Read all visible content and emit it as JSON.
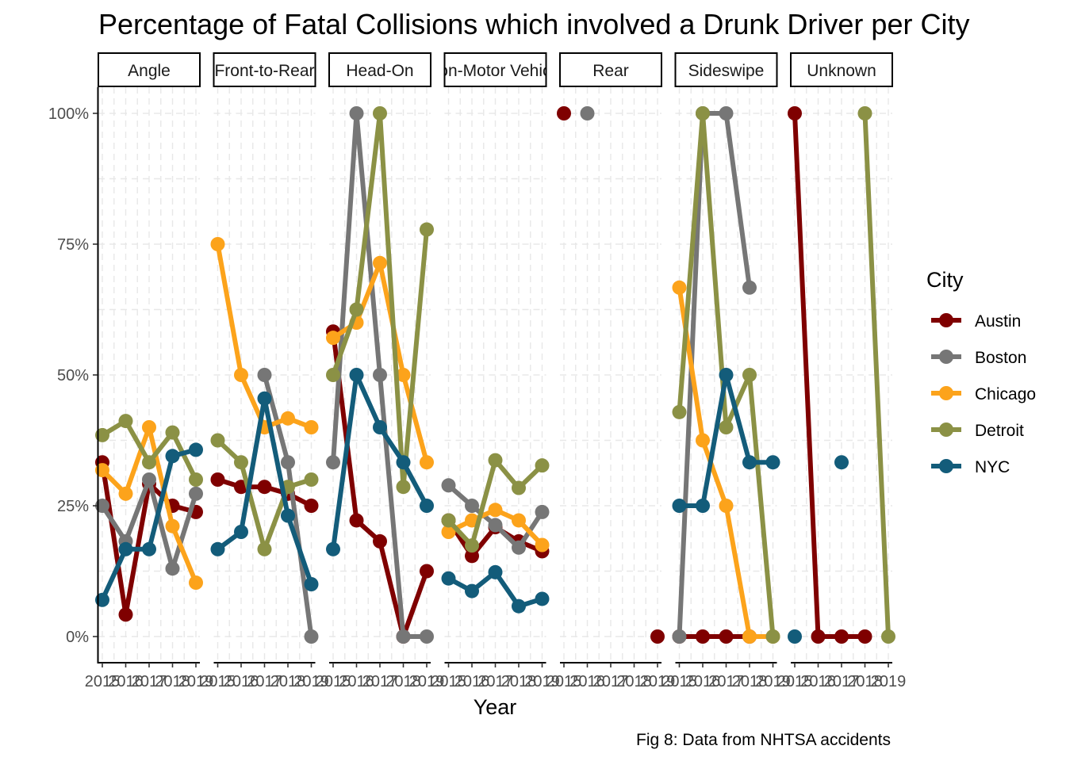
{
  "chart_data": {
    "type": "line",
    "title": "Percentage of Fatal Collisions which involved a Drunk Driver per City",
    "xlabel": "Year",
    "ylabel": "",
    "caption": "Fig 8: Data from NHTSA accidents",
    "legend_title": "City",
    "legend_position": "right",
    "grid": true,
    "x": [
      2015,
      2016,
      2017,
      2018,
      2019
    ],
    "x_tick_labels": [
      "2015",
      "2016",
      "2017",
      "2018",
      "2019"
    ],
    "ylim": [
      0,
      1
    ],
    "y_ticks": [
      0,
      0.25,
      0.5,
      0.75,
      1
    ],
    "y_tick_labels": [
      "0%",
      "25%",
      "50%",
      "75%",
      "100%"
    ],
    "series_colors": {
      "Austin": "#7f0000",
      "Boston": "#767676",
      "Chicago": "#fca31b",
      "Detroit": "#8b9145",
      "NYC": "#135c7a"
    },
    "series_names": [
      "Austin",
      "Boston",
      "Chicago",
      "Detroit",
      "NYC"
    ],
    "panels": [
      {
        "label": "Angle",
        "series": [
          {
            "name": "Austin",
            "values": [
              0.333,
              0.042,
              0.292,
              0.25,
              0.238
            ]
          },
          {
            "name": "Boston",
            "values": [
              0.25,
              0.182,
              0.3,
              0.13,
              0.273
            ]
          },
          {
            "name": "Chicago",
            "values": [
              0.318,
              0.273,
              0.4,
              0.211,
              0.103
            ]
          },
          {
            "name": "Detroit",
            "values": [
              0.385,
              0.412,
              0.333,
              0.39,
              0.3
            ]
          },
          {
            "name": "NYC",
            "values": [
              0.07,
              0.167,
              0.167,
              0.345,
              0.357
            ]
          }
        ]
      },
      {
        "label": "Front-to-Rear",
        "series": [
          {
            "name": "Austin",
            "values": [
              0.3,
              0.286,
              0.286,
              0.273,
              0.25
            ]
          },
          {
            "name": "Boston",
            "values": [
              null,
              null,
              0.5,
              0.333,
              0.0
            ]
          },
          {
            "name": "Chicago",
            "values": [
              0.75,
              0.5,
              0.4,
              0.417,
              0.4
            ]
          },
          {
            "name": "Detroit",
            "values": [
              0.375,
              0.333,
              0.167,
              0.286,
              0.3
            ]
          },
          {
            "name": "NYC",
            "values": [
              0.167,
              0.2,
              0.455,
              0.231,
              0.1
            ]
          }
        ]
      },
      {
        "label": "Head-On",
        "series": [
          {
            "name": "Austin",
            "values": [
              0.583,
              0.222,
              0.182,
              0.0,
              0.125
            ]
          },
          {
            "name": "Boston",
            "values": [
              0.333,
              1.0,
              0.5,
              0.0,
              0.0
            ]
          },
          {
            "name": "Chicago",
            "values": [
              0.571,
              0.6,
              0.714,
              0.5,
              0.333
            ]
          },
          {
            "name": "Detroit",
            "values": [
              0.5,
              0.625,
              1.0,
              0.286,
              0.778
            ]
          },
          {
            "name": "NYC",
            "values": [
              0.167,
              0.5,
              0.4,
              0.333,
              0.25
            ]
          }
        ]
      },
      {
        "label": "Non-Motor Vehicle",
        "series": [
          {
            "name": "Austin",
            "values": [
              0.222,
              0.154,
              0.209,
              0.182,
              0.163
            ]
          },
          {
            "name": "Boston",
            "values": [
              0.289,
              0.25,
              0.213,
              0.17,
              0.238
            ]
          },
          {
            "name": "Chicago",
            "values": [
              0.2,
              0.222,
              0.242,
              0.222,
              0.175
            ]
          },
          {
            "name": "Detroit",
            "values": [
              0.222,
              0.174,
              0.337,
              0.284,
              0.327
            ]
          },
          {
            "name": "NYC",
            "values": [
              0.111,
              0.087,
              0.123,
              0.058,
              0.072
            ]
          }
        ]
      },
      {
        "label": "Rear",
        "series": [
          {
            "name": "Austin",
            "values": [
              1.0,
              null,
              null,
              null,
              0.0
            ]
          },
          {
            "name": "Boston",
            "values": [
              null,
              1.0,
              null,
              null,
              null
            ]
          }
        ]
      },
      {
        "label": "Sideswipe",
        "series": [
          {
            "name": "Austin",
            "values": [
              0.0,
              0.0,
              0.0,
              0.0,
              null
            ]
          },
          {
            "name": "Boston",
            "values": [
              0.0,
              1.0,
              1.0,
              0.667,
              null
            ]
          },
          {
            "name": "Chicago",
            "values": [
              0.667,
              0.375,
              0.25,
              0.0,
              0.0
            ]
          },
          {
            "name": "Detroit",
            "values": [
              0.429,
              1.0,
              0.4,
              0.5,
              0.0
            ]
          },
          {
            "name": "NYC",
            "values": [
              0.25,
              0.25,
              0.5,
              0.333,
              0.333
            ]
          }
        ]
      },
      {
        "label": "Unknown",
        "series": [
          {
            "name": "Austin",
            "values": [
              1.0,
              0.0,
              0.0,
              0.0,
              null
            ]
          },
          {
            "name": "Detroit",
            "values": [
              null,
              null,
              null,
              1.0,
              0.0
            ]
          },
          {
            "name": "NYC",
            "values": [
              0.0,
              null,
              0.333,
              null,
              null
            ]
          }
        ]
      }
    ]
  }
}
